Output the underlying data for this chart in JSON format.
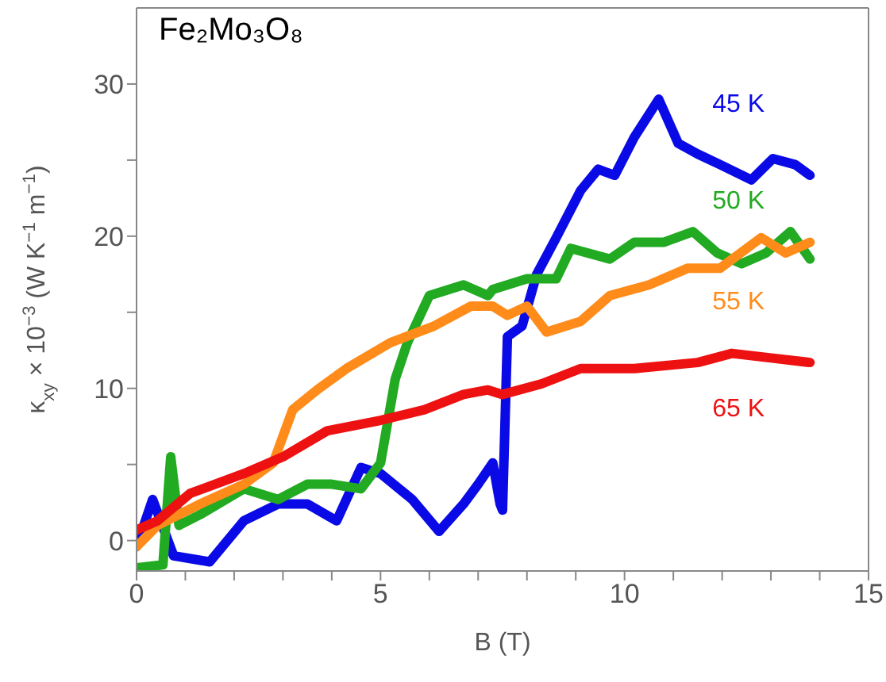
{
  "chart_data": {
    "type": "line",
    "title": "Fe₂Mo₃O₈",
    "xlabel": "B (T)",
    "ylabel": "κ$_{xy}$ × 10$^{−3}$ (W K$^{−1}$ m$^{−1}$)",
    "xlim": [
      0,
      15
    ],
    "ylim": [
      -2,
      35
    ],
    "xticks": [
      0,
      {
        "value": 1,
        "label": null
      },
      {
        "value": 2,
        "label": null
      },
      {
        "value": 3,
        "label": null
      },
      {
        "value": 4,
        "label": null
      },
      5,
      {
        "value": 6,
        "label": null
      },
      {
        "value": 7,
        "label": null
      },
      {
        "value": 8,
        "label": null
      },
      {
        "value": 9,
        "label": null
      },
      10,
      {
        "value": 11,
        "label": null
      },
      {
        "value": 12,
        "label": null
      },
      {
        "value": 13,
        "label": null
      },
      {
        "value": 14,
        "label": null
      },
      15
    ],
    "yticks": [
      0,
      {
        "value": 5,
        "label": null
      },
      10,
      {
        "value": 15,
        "label": null
      },
      20,
      {
        "value": 25,
        "label": null
      },
      30
    ],
    "legend": false,
    "marker": "none",
    "line_style": "solid",
    "series": [
      {
        "name": "45 K",
        "color": "#0a0ae6",
        "x": [
          0,
          0.33,
          0.76,
          1.5,
          2.2,
          2.9,
          3.5,
          4.1,
          4.6,
          5,
          5.65,
          6.2,
          6.7,
          7.0,
          7.3,
          7.45,
          7.5,
          7.6,
          7.9,
          8.2,
          8.6,
          9.1,
          9.46,
          9.8,
          10.2,
          10.7,
          11.1,
          11.5,
          11.96,
          12.6,
          13.04,
          13.5,
          13.8
        ],
        "values": [
          -0.4,
          2.7,
          -1,
          -1.4,
          1.3,
          2.4,
          2.4,
          1.3,
          4.8,
          4.4,
          2.7,
          0.6,
          2.4,
          3.7,
          5.1,
          2.4,
          2.0,
          13.4,
          14.1,
          17.5,
          19.9,
          23,
          24.4,
          24,
          26.5,
          29,
          26.1,
          25.4,
          24.7,
          23.7,
          25.1,
          24.7,
          24.0
        ]
      },
      {
        "name": "50 K",
        "color": "#22aa22",
        "x": [
          0,
          0.54,
          0.7,
          0.87,
          1.3,
          2.2,
          2.9,
          3.5,
          4,
          4.6,
          5,
          5.3,
          5.55,
          6,
          6.7,
          7.2,
          7.3,
          8.0,
          8.6,
          8.9,
          9.7,
          10.2,
          10.8,
          11.4,
          11.9,
          12.4,
          12.9,
          13.4,
          13.8
        ],
        "values": [
          -1.8,
          -1.6,
          5.5,
          1,
          1.7,
          3.4,
          2.7,
          3.7,
          3.7,
          3.4,
          5.1,
          10.6,
          13,
          16.1,
          16.8,
          16.1,
          16.5,
          17.2,
          17.2,
          19.2,
          18.5,
          19.6,
          19.6,
          20.3,
          18.9,
          18.2,
          18.9,
          20.3,
          18.5
        ]
      },
      {
        "name": "55 K",
        "color": "#ff8c1a",
        "x": [
          0,
          0.43,
          1.3,
          2.2,
          2.8,
          3.2,
          3.7,
          4.3,
          5.2,
          6.1,
          6.85,
          7.3,
          7.6,
          8,
          8.4,
          9.1,
          9.7,
          10.5,
          11.3,
          11.96,
          12.8,
          13.3,
          13.8
        ],
        "values": [
          -0.4,
          1,
          2.4,
          3.7,
          5.1,
          8.6,
          9.9,
          11.3,
          13,
          14.1,
          15.4,
          15.4,
          14.8,
          15.4,
          13.7,
          14.4,
          16.1,
          16.8,
          17.9,
          17.9,
          19.9,
          18.9,
          19.6
        ]
      },
      {
        "name": "65 K",
        "color": "#ee1111",
        "x": [
          0,
          0.43,
          1.1,
          2.2,
          3.0,
          3.9,
          5,
          5.9,
          6.7,
          7.2,
          7.5,
          8.3,
          9.1,
          10.2,
          11.5,
          12.2,
          13,
          13.8
        ],
        "values": [
          0.7,
          1.3,
          3.1,
          4.4,
          5.5,
          7.2,
          7.9,
          8.6,
          9.6,
          9.9,
          9.6,
          10.3,
          11.3,
          11.3,
          11.7,
          12.3,
          12,
          11.7
        ]
      }
    ]
  }
}
